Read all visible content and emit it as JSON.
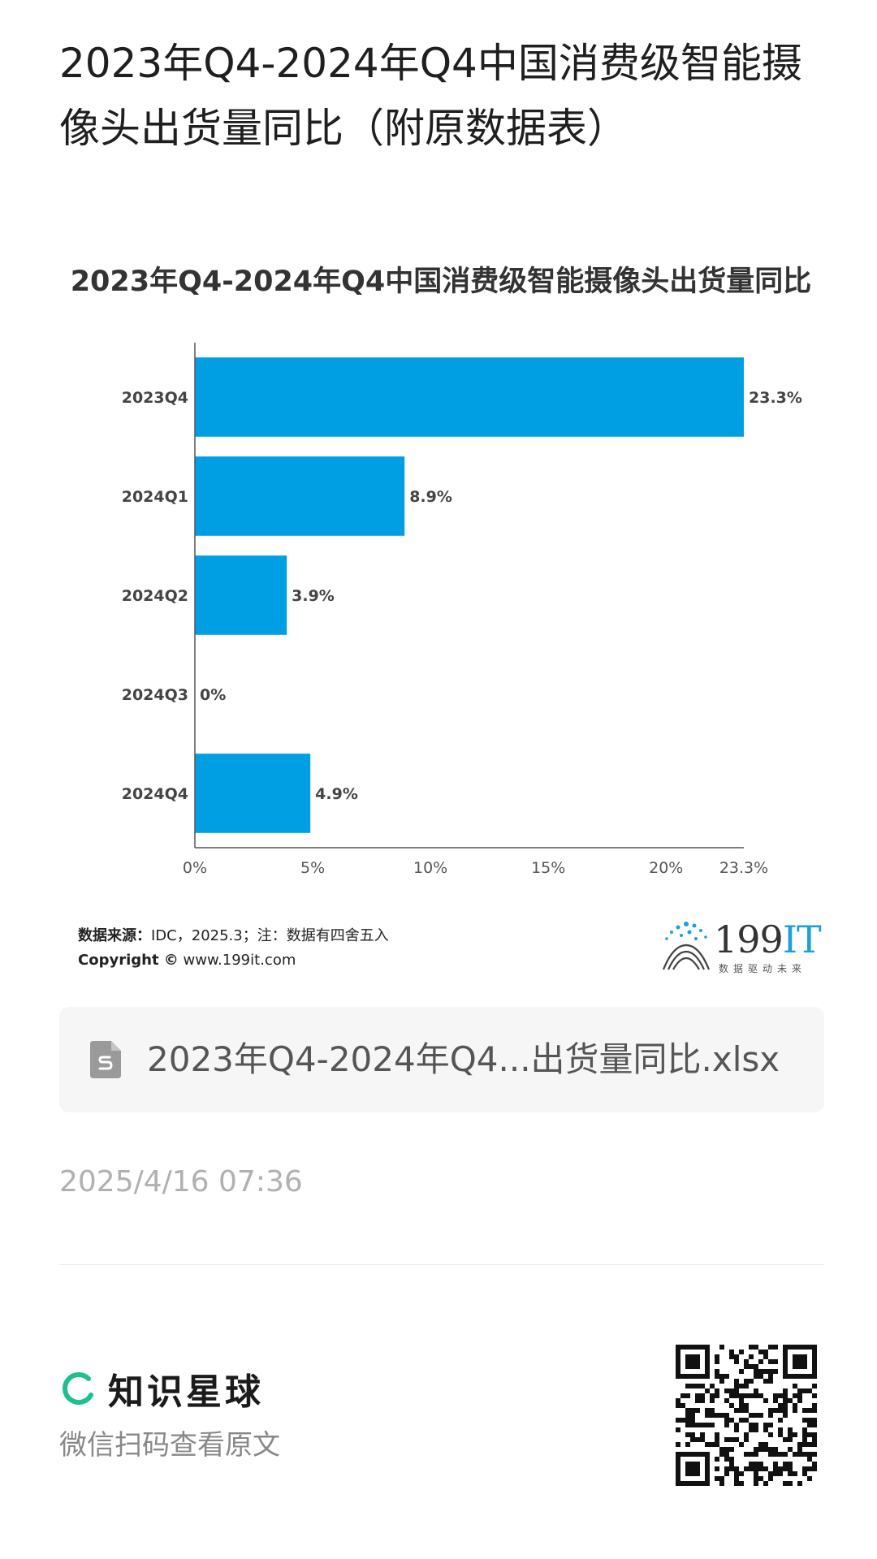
{
  "page": {
    "title": "2023年Q4-2024年Q4中国消费级智能摄像头出货量同比（附原数据表）"
  },
  "chart_data": {
    "type": "bar",
    "orientation": "horizontal",
    "title": "2023年Q4-2024年Q4中国消费级智能摄像头出货量同比",
    "categories": [
      "2023Q4",
      "2024Q1",
      "2024Q2",
      "2024Q3",
      "2024Q4"
    ],
    "values": [
      23.3,
      8.9,
      3.9,
      0,
      4.9
    ],
    "value_labels": [
      "23.3%",
      "8.9%",
      "3.9%",
      "0%",
      "4.9%"
    ],
    "x_ticks": [
      0,
      5,
      10,
      15,
      20,
      23.3
    ],
    "x_tick_labels": [
      "0%",
      "5%",
      "10%",
      "15%",
      "20%",
      "23.3%"
    ],
    "xlim": [
      0,
      23.3
    ],
    "grid": false,
    "bar_color": "#009fe3"
  },
  "source": {
    "label": "数据来源：",
    "text": "IDC，2025.3；注：数据有四舍五入",
    "copyright_label": "Copyright ©",
    "copyright_site": "www.199it.com"
  },
  "logo": {
    "number": "199",
    "suffix": "IT",
    "tagline": "数据驱动未来"
  },
  "file": {
    "icon": "spreadsheet-file-icon",
    "name": "2023年Q4-2024年Q4...出货量同比.xlsx"
  },
  "timestamp": "2025/4/16 07:36",
  "footer": {
    "brand_name": "知识星球",
    "brand_color": "#1fbf8f",
    "scan_hint": "微信扫码查看原文"
  }
}
